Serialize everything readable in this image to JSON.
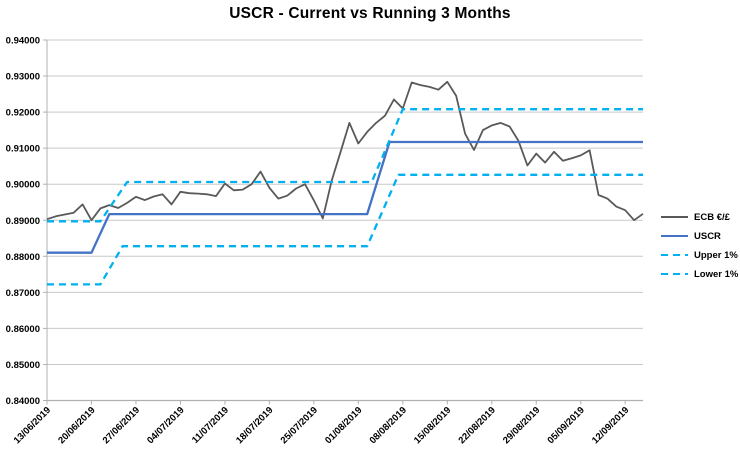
{
  "chart_data": {
    "type": "line",
    "title": "USCR - Current vs Running 3 Months",
    "legend_position": "right",
    "grid_on": true,
    "colors": {
      "ecb": "#595959",
      "uscr": "#4472C4",
      "band": "#00B0F0",
      "grid": "#c9c9c9",
      "axis": "#b0b0b0",
      "text": "#000000"
    },
    "y_axis": {
      "min": 0.84,
      "max": 0.94,
      "step": 0.01,
      "tick_labels": [
        "0.84000",
        "0.85000",
        "0.86000",
        "0.87000",
        "0.88000",
        "0.89000",
        "0.90000",
        "0.91000",
        "0.92000",
        "0.93000",
        "0.94000"
      ]
    },
    "x_axis": {
      "tick_labels": [
        "13/06/2019",
        "20/06/2019",
        "27/06/2019",
        "04/07/2019",
        "11/07/2019",
        "18/07/2019",
        "25/07/2019",
        "01/08/2019",
        "08/08/2019",
        "15/08/2019",
        "22/08/2019",
        "29/08/2019",
        "05/09/2019",
        "12/09/2019"
      ],
      "tick_every": 5,
      "n_points": 68,
      "label_rotation": -45,
      "frequency": "business-daily"
    },
    "series": [
      {
        "name": "ECB €/£",
        "color_key": "ecb",
        "dash": false,
        "width": 1.8,
        "values": [
          0.8903,
          0.8911,
          0.8916,
          0.8921,
          0.8944,
          0.89,
          0.8933,
          0.8942,
          0.8934,
          0.8948,
          0.8965,
          0.8956,
          0.8966,
          0.8972,
          0.8944,
          0.8979,
          0.8975,
          0.8974,
          0.8972,
          0.8967,
          0.9002,
          0.8983,
          0.8985,
          0.9,
          0.9035,
          0.899,
          0.896,
          0.8968,
          0.8988,
          0.9,
          0.8955,
          0.8905,
          0.901,
          0.909,
          0.917,
          0.9113,
          0.9145,
          0.917,
          0.919,
          0.9235,
          0.921,
          0.9282,
          0.9275,
          0.927,
          0.9262,
          0.9284,
          0.9245,
          0.914,
          0.9095,
          0.915,
          0.9163,
          0.917,
          0.916,
          0.912,
          0.9052,
          0.9085,
          0.906,
          0.909,
          0.9065,
          0.9072,
          0.908,
          0.9094,
          0.897,
          0.896,
          0.8938,
          0.8928,
          0.89,
          0.8918
        ]
      },
      {
        "name": "USCR",
        "color_key": "uscr",
        "dash": false,
        "width": 2.3,
        "breakpoints": [
          [
            0,
            0.881
          ],
          [
            5,
            0.881
          ],
          [
            7,
            0.8917
          ],
          [
            36,
            0.8917
          ],
          [
            38.5,
            0.9117
          ],
          [
            67,
            0.9117
          ]
        ]
      },
      {
        "name": "Upper 1%",
        "color_key": "band",
        "dash": true,
        "width": 2.3,
        "breakpoints": [
          [
            0,
            0.8897
          ],
          [
            6,
            0.8897
          ],
          [
            9,
            0.9006
          ],
          [
            36.5,
            0.9006
          ],
          [
            40,
            0.9208
          ],
          [
            67,
            0.9208
          ]
        ]
      },
      {
        "name": "Lower 1%",
        "color_key": "band",
        "dash": true,
        "width": 2.3,
        "breakpoints": [
          [
            0,
            0.8722
          ],
          [
            6,
            0.8722
          ],
          [
            8.5,
            0.8828
          ],
          [
            36,
            0.8828
          ],
          [
            39.5,
            0.9026
          ],
          [
            67,
            0.9026
          ]
        ]
      }
    ]
  }
}
